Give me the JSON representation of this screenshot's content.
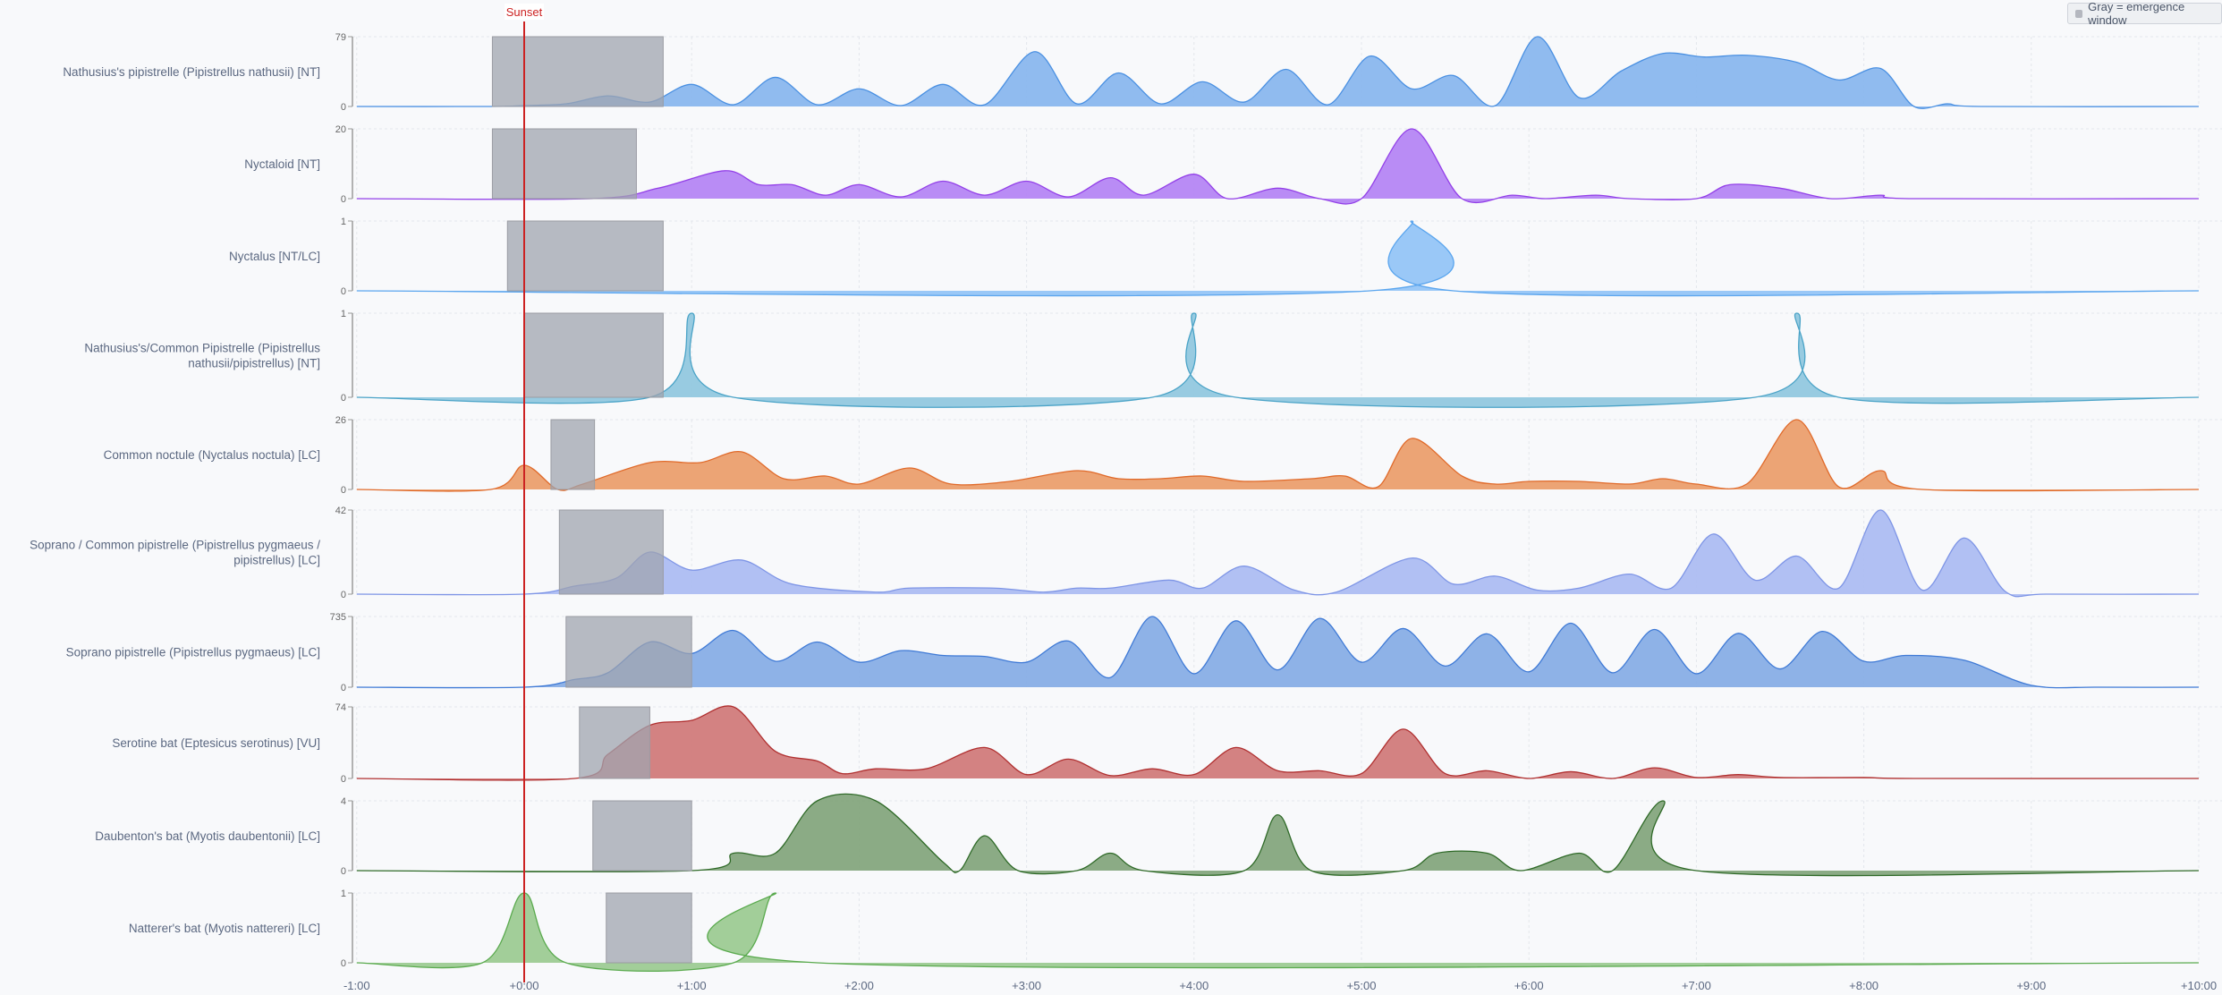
{
  "legend": {
    "text": "Gray = emergence window",
    "swatch_color": "#b4b7bf"
  },
  "sunset": {
    "label": "Sunset",
    "x": 0,
    "color": "#cc2222"
  },
  "chart_data": {
    "type": "area",
    "layout": "ridgeline",
    "xlim": [
      -1,
      10
    ],
    "x_ticks": [
      {
        "x": -1,
        "label": "-1:00"
      },
      {
        "x": 0,
        "label": "+0:00"
      },
      {
        "x": 1,
        "label": "+1:00"
      },
      {
        "x": 2,
        "label": "+2:00"
      },
      {
        "x": 3,
        "label": "+3:00"
      },
      {
        "x": 4,
        "label": "+4:00"
      },
      {
        "x": 5,
        "label": "+5:00"
      },
      {
        "x": 6,
        "label": "+6:00"
      },
      {
        "x": 7,
        "label": "+7:00"
      },
      {
        "x": 8,
        "label": "+8:00"
      },
      {
        "x": 9,
        "label": "+9:00"
      },
      {
        "x": 10,
        "label": "+10:00"
      }
    ],
    "grid": true,
    "legend_position": "top-right",
    "series": [
      {
        "label": [
          "Nathusius's pipistrelle (Pipistrellus nathusii) [NT]"
        ],
        "ymax": 79,
        "y_ticks": [
          "0",
          "79"
        ],
        "fill": "#8ab7ee",
        "stroke": "#4a90e2",
        "emergence_window": [
          -0.19,
          0.83
        ],
        "points": [
          [
            -1,
            0
          ],
          [
            -0.2,
            0
          ],
          [
            0,
            1
          ],
          [
            0.25,
            3
          ],
          [
            0.5,
            12
          ],
          [
            0.75,
            5
          ],
          [
            1.0,
            25
          ],
          [
            1.25,
            2
          ],
          [
            1.5,
            33
          ],
          [
            1.75,
            2
          ],
          [
            2.0,
            20
          ],
          [
            2.25,
            1
          ],
          [
            2.5,
            25
          ],
          [
            2.75,
            2
          ],
          [
            3.05,
            62
          ],
          [
            3.3,
            3
          ],
          [
            3.55,
            38
          ],
          [
            3.8,
            3
          ],
          [
            4.05,
            28
          ],
          [
            4.3,
            5
          ],
          [
            4.55,
            42
          ],
          [
            4.8,
            2
          ],
          [
            5.05,
            57
          ],
          [
            5.3,
            20
          ],
          [
            5.55,
            35
          ],
          [
            5.8,
            1
          ],
          [
            6.05,
            79
          ],
          [
            6.3,
            10
          ],
          [
            6.55,
            40
          ],
          [
            6.8,
            60
          ],
          [
            7.05,
            56
          ],
          [
            7.3,
            58
          ],
          [
            7.6,
            50
          ],
          [
            7.85,
            30
          ],
          [
            8.1,
            43
          ],
          [
            8.3,
            0
          ],
          [
            8.5,
            3
          ],
          [
            8.7,
            0
          ],
          [
            10,
            0
          ]
        ]
      },
      {
        "label": [
          "Nyctaloid [NT]"
        ],
        "ymax": 20,
        "y_ticks": [
          "0",
          "20"
        ],
        "fill": "#b586f4",
        "stroke": "#9340e8",
        "emergence_window": [
          -0.19,
          0.67
        ],
        "points": [
          [
            -1,
            0
          ],
          [
            0.4,
            0
          ],
          [
            0.8,
            3
          ],
          [
            1.2,
            8
          ],
          [
            1.4,
            4
          ],
          [
            1.6,
            4
          ],
          [
            1.8,
            1
          ],
          [
            2.0,
            4
          ],
          [
            2.25,
            0.5
          ],
          [
            2.5,
            5
          ],
          [
            2.75,
            1
          ],
          [
            3.0,
            5
          ],
          [
            3.25,
            0.5
          ],
          [
            3.5,
            6
          ],
          [
            3.7,
            1
          ],
          [
            4.0,
            7
          ],
          [
            4.2,
            0
          ],
          [
            4.5,
            3
          ],
          [
            4.75,
            0
          ],
          [
            5.0,
            0
          ],
          [
            5.3,
            20
          ],
          [
            5.6,
            0
          ],
          [
            5.9,
            1
          ],
          [
            6.1,
            0
          ],
          [
            6.4,
            1
          ],
          [
            6.6,
            0
          ],
          [
            7.0,
            0
          ],
          [
            7.2,
            4
          ],
          [
            7.5,
            3
          ],
          [
            7.8,
            0
          ],
          [
            8.1,
            1
          ],
          [
            8.3,
            0
          ],
          [
            10,
            0
          ]
        ]
      },
      {
        "label": [
          "Nyctalus [NT/LC]"
        ],
        "ymax": 1,
        "y_ticks": [
          "0",
          "1"
        ],
        "fill": "#95c5f7",
        "stroke": "#5aa5ee",
        "emergence_window": [
          -0.1,
          0.83
        ],
        "points": [
          [
            -1,
            0
          ],
          [
            5.05,
            0
          ],
          [
            5.3,
            1
          ],
          [
            5.55,
            0
          ],
          [
            10,
            0
          ]
        ]
      },
      {
        "label": [
          "Nathusius's/Common Pipistrelle (Pipistrellus",
          "nathusii/pipistrellus) [NT]"
        ],
        "ymax": 1,
        "y_ticks": [
          "0",
          "1"
        ],
        "fill": "#92c8df",
        "stroke": "#4aa3c7",
        "emergence_window": [
          0,
          0.83
        ],
        "points": [
          [
            -1,
            0
          ],
          [
            0.75,
            0
          ],
          [
            1.0,
            1
          ],
          [
            1.25,
            0
          ],
          [
            3.75,
            0
          ],
          [
            4.0,
            1
          ],
          [
            4.25,
            0
          ],
          [
            7.35,
            0
          ],
          [
            7.6,
            1
          ],
          [
            7.85,
            0
          ],
          [
            10,
            0
          ]
        ]
      },
      {
        "label": [
          "Common noctule (Nyctalus noctula) [LC]"
        ],
        "ymax": 26,
        "y_ticks": [
          "0",
          "26"
        ],
        "fill": "#eb9f6e",
        "stroke": "#e06a2a",
        "emergence_window": [
          0.16,
          0.42
        ],
        "points": [
          [
            -1,
            0
          ],
          [
            -0.2,
            0
          ],
          [
            0,
            9
          ],
          [
            0.2,
            0
          ],
          [
            0.35,
            2
          ],
          [
            0.75,
            10
          ],
          [
            1.05,
            10
          ],
          [
            1.3,
            14
          ],
          [
            1.55,
            4
          ],
          [
            1.8,
            5
          ],
          [
            2.0,
            2
          ],
          [
            2.3,
            8
          ],
          [
            2.55,
            2
          ],
          [
            2.9,
            3
          ],
          [
            3.3,
            7
          ],
          [
            3.55,
            4
          ],
          [
            3.8,
            4
          ],
          [
            4.05,
            5
          ],
          [
            4.3,
            3
          ],
          [
            4.7,
            4
          ],
          [
            4.9,
            5
          ],
          [
            5.1,
            1
          ],
          [
            5.3,
            19
          ],
          [
            5.6,
            5
          ],
          [
            5.8,
            2
          ],
          [
            6.0,
            3
          ],
          [
            6.3,
            3
          ],
          [
            6.6,
            2
          ],
          [
            6.8,
            4
          ],
          [
            7.0,
            2
          ],
          [
            7.3,
            2
          ],
          [
            7.6,
            26
          ],
          [
            7.85,
            1
          ],
          [
            8.1,
            7
          ],
          [
            8.35,
            0
          ],
          [
            10,
            0
          ]
        ]
      },
      {
        "label": [
          "Soprano / Common pipistrelle (Pipistrellus pygmaeus /",
          "pipistrellus) [LC]"
        ],
        "ymax": 42,
        "y_ticks": [
          "0",
          "42"
        ],
        "fill": "#adbdf2",
        "stroke": "#7e95e6",
        "emergence_window": [
          0.21,
          0.83
        ],
        "points": [
          [
            -1,
            0
          ],
          [
            0,
            0
          ],
          [
            0.3,
            4
          ],
          [
            0.55,
            8
          ],
          [
            0.75,
            21
          ],
          [
            1.0,
            12
          ],
          [
            1.3,
            17
          ],
          [
            1.6,
            5
          ],
          [
            2.1,
            1
          ],
          [
            2.3,
            3
          ],
          [
            2.8,
            3
          ],
          [
            3.1,
            1
          ],
          [
            3.3,
            3
          ],
          [
            3.5,
            3
          ],
          [
            3.85,
            7
          ],
          [
            4.05,
            3
          ],
          [
            4.3,
            14
          ],
          [
            4.6,
            2
          ],
          [
            4.85,
            1
          ],
          [
            5.3,
            18
          ],
          [
            5.55,
            5
          ],
          [
            5.8,
            9
          ],
          [
            6.05,
            2
          ],
          [
            6.3,
            3
          ],
          [
            6.6,
            10
          ],
          [
            6.85,
            3
          ],
          [
            7.1,
            30
          ],
          [
            7.35,
            7
          ],
          [
            7.6,
            19
          ],
          [
            7.85,
            3
          ],
          [
            8.1,
            42
          ],
          [
            8.35,
            2
          ],
          [
            8.6,
            28
          ],
          [
            8.85,
            1
          ],
          [
            9.1,
            0
          ],
          [
            10,
            0
          ]
        ]
      },
      {
        "label": [
          "Soprano pipistrelle (Pipistrellus pygmaeus) [LC]"
        ],
        "ymax": 735,
        "y_ticks": [
          "0",
          "735"
        ],
        "fill": "#88aee6",
        "stroke": "#3f7ad6",
        "emergence_window": [
          0.25,
          1.0
        ],
        "points": [
          [
            -1,
            0
          ],
          [
            0,
            0
          ],
          [
            0.3,
            80
          ],
          [
            0.5,
            150
          ],
          [
            0.75,
            470
          ],
          [
            1.0,
            350
          ],
          [
            1.25,
            590
          ],
          [
            1.5,
            270
          ],
          [
            1.75,
            470
          ],
          [
            2.0,
            260
          ],
          [
            2.25,
            380
          ],
          [
            2.5,
            330
          ],
          [
            2.75,
            320
          ],
          [
            3.0,
            260
          ],
          [
            3.25,
            480
          ],
          [
            3.5,
            100
          ],
          [
            3.75,
            735
          ],
          [
            4.0,
            140
          ],
          [
            4.25,
            690
          ],
          [
            4.5,
            180
          ],
          [
            4.75,
            715
          ],
          [
            5.0,
            260
          ],
          [
            5.25,
            610
          ],
          [
            5.5,
            220
          ],
          [
            5.75,
            555
          ],
          [
            6.0,
            160
          ],
          [
            6.25,
            665
          ],
          [
            6.5,
            150
          ],
          [
            6.75,
            600
          ],
          [
            7.0,
            140
          ],
          [
            7.25,
            560
          ],
          [
            7.5,
            190
          ],
          [
            7.75,
            580
          ],
          [
            8.0,
            270
          ],
          [
            8.25,
            330
          ],
          [
            8.6,
            280
          ],
          [
            9.0,
            20
          ],
          [
            9.4,
            0
          ],
          [
            10,
            0
          ]
        ]
      },
      {
        "label": [
          "Serotine bat (Eptesicus serotinus) [VU]"
        ],
        "ymax": 74,
        "y_ticks": [
          "0",
          "74"
        ],
        "fill": "#d17b7b",
        "stroke": "#b03030",
        "emergence_window": [
          0.33,
          0.75
        ],
        "points": [
          [
            -1,
            0
          ],
          [
            0.3,
            0
          ],
          [
            0.5,
            25
          ],
          [
            0.75,
            55
          ],
          [
            1.0,
            60
          ],
          [
            1.25,
            74
          ],
          [
            1.5,
            28
          ],
          [
            1.75,
            18
          ],
          [
            1.9,
            5
          ],
          [
            2.1,
            10
          ],
          [
            2.4,
            10
          ],
          [
            2.75,
            32
          ],
          [
            3.0,
            4
          ],
          [
            3.25,
            20
          ],
          [
            3.5,
            3
          ],
          [
            3.75,
            10
          ],
          [
            4.0,
            4
          ],
          [
            4.25,
            32
          ],
          [
            4.5,
            8
          ],
          [
            4.75,
            8
          ],
          [
            5.0,
            5
          ],
          [
            5.25,
            51
          ],
          [
            5.5,
            5
          ],
          [
            5.75,
            8
          ],
          [
            6.0,
            0
          ],
          [
            6.25,
            7
          ],
          [
            6.5,
            0
          ],
          [
            6.75,
            11
          ],
          [
            7.0,
            1
          ],
          [
            7.25,
            4
          ],
          [
            7.5,
            1
          ],
          [
            8.0,
            1
          ],
          [
            8.3,
            0
          ],
          [
            10,
            0
          ]
        ]
      },
      {
        "label": [
          "Daubenton's bat (Myotis daubentonii) [LC]"
        ],
        "ymax": 4,
        "y_ticks": [
          "0",
          "4"
        ],
        "fill": "#85a67e",
        "stroke": "#2f6a28",
        "emergence_window": [
          0.41,
          1.0
        ],
        "points": [
          [
            -1,
            0
          ],
          [
            1.0,
            0
          ],
          [
            1.25,
            1
          ],
          [
            1.5,
            1
          ],
          [
            1.75,
            4
          ],
          [
            2.1,
            4
          ],
          [
            2.5,
            0.5
          ],
          [
            2.6,
            0
          ],
          [
            2.75,
            2
          ],
          [
            2.95,
            0
          ],
          [
            3.3,
            0
          ],
          [
            3.5,
            1
          ],
          [
            3.7,
            0
          ],
          [
            4.3,
            0
          ],
          [
            4.5,
            3.2
          ],
          [
            4.7,
            0
          ],
          [
            5.25,
            0
          ],
          [
            5.45,
            1
          ],
          [
            5.75,
            1
          ],
          [
            5.95,
            0
          ],
          [
            6.3,
            1
          ],
          [
            6.5,
            0
          ],
          [
            6.8,
            4
          ],
          [
            7.0,
            0
          ],
          [
            10,
            0
          ]
        ]
      },
      {
        "label": [
          "Natterer's bat (Myotis nattereri) [LC]"
        ],
        "ymax": 1,
        "y_ticks": [
          "0",
          "1"
        ],
        "fill": "#9dcb94",
        "stroke": "#5aaa4e",
        "emergence_window": [
          0.49,
          1.0
        ],
        "points": [
          [
            -1,
            0
          ],
          [
            -0.25,
            0
          ],
          [
            0,
            1
          ],
          [
            0.25,
            0
          ],
          [
            1.25,
            0
          ],
          [
            1.5,
            1
          ],
          [
            1.75,
            0
          ],
          [
            10,
            0
          ]
        ]
      }
    ]
  }
}
